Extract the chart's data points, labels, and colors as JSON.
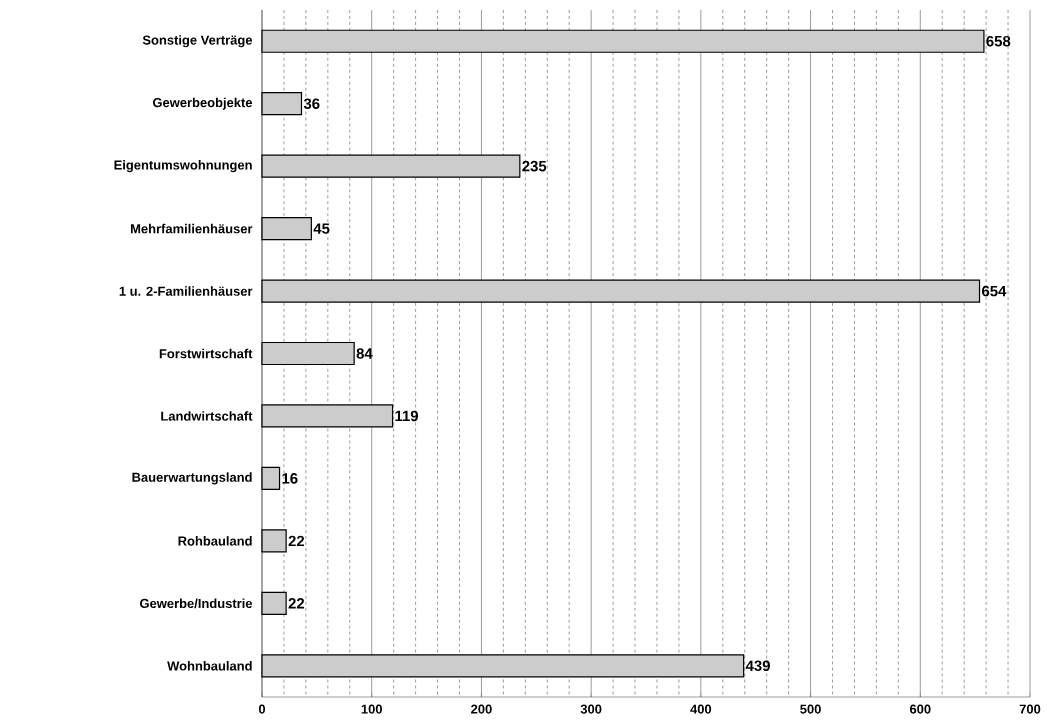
{
  "chart_data": {
    "type": "bar",
    "orientation": "horizontal",
    "categories": [
      "Sonstige Verträge",
      "Gewerbeobjekte",
      "Eigentumswohnungen",
      "Mehrfamilienhäuser",
      "1 u. 2-Familienhäuser",
      "Forstwirtschaft",
      "Landwirtschaft",
      "Bauerwartungsland",
      "Rohbauland",
      "Gewerbe/Industrie",
      "Wohnbauland"
    ],
    "values": [
      658,
      36,
      235,
      45,
      654,
      84,
      119,
      16,
      22,
      22,
      439
    ],
    "color": "#cccccc",
    "xlim": [
      0,
      700
    ],
    "xticks": [
      0,
      100,
      200,
      300,
      400,
      500,
      600,
      700
    ],
    "grid": "x",
    "data_labels": true
  }
}
